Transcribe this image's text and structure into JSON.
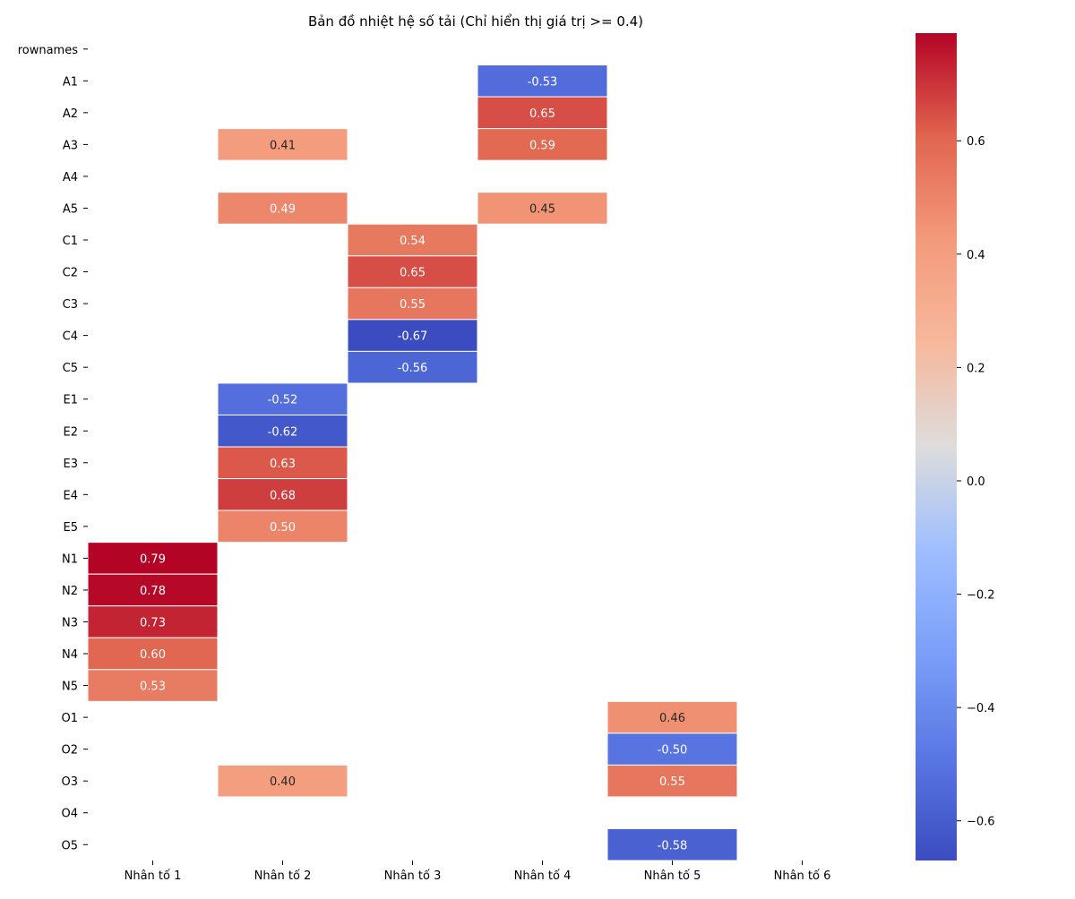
{
  "chart_data": {
    "type": "heatmap",
    "title": "Bản đồ nhiệt hệ số tải (Chỉ hiển thị giá trị >= 0.4)",
    "xlabel": "",
    "ylabel": "",
    "columns": [
      "Nhân tố 1",
      "Nhân tố 2",
      "Nhân tố 3",
      "Nhân tố 4",
      "Nhân tố 5",
      "Nhân tố 6"
    ],
    "rows": [
      "rownames",
      "A1",
      "A2",
      "A3",
      "A4",
      "A5",
      "C1",
      "C2",
      "C3",
      "C4",
      "C5",
      "E1",
      "E2",
      "E3",
      "E4",
      "E5",
      "N1",
      "N2",
      "N3",
      "N4",
      "N5",
      "O1",
      "O2",
      "O3",
      "O4",
      "O5"
    ],
    "values": [
      [
        null,
        null,
        null,
        null,
        null,
        null
      ],
      [
        null,
        null,
        null,
        -0.53,
        null,
        null
      ],
      [
        null,
        null,
        null,
        0.65,
        null,
        null
      ],
      [
        null,
        0.41,
        null,
        0.59,
        null,
        null
      ],
      [
        null,
        null,
        null,
        null,
        null,
        null
      ],
      [
        null,
        0.49,
        null,
        0.45,
        null,
        null
      ],
      [
        null,
        null,
        0.54,
        null,
        null,
        null
      ],
      [
        null,
        null,
        0.65,
        null,
        null,
        null
      ],
      [
        null,
        null,
        0.55,
        null,
        null,
        null
      ],
      [
        null,
        null,
        -0.67,
        null,
        null,
        null
      ],
      [
        null,
        null,
        -0.56,
        null,
        null,
        null
      ],
      [
        null,
        -0.52,
        null,
        null,
        null,
        null
      ],
      [
        null,
        -0.62,
        null,
        null,
        null,
        null
      ],
      [
        null,
        0.63,
        null,
        null,
        null,
        null
      ],
      [
        null,
        0.68,
        null,
        null,
        null,
        null
      ],
      [
        null,
        0.5,
        null,
        null,
        null,
        null
      ],
      [
        0.79,
        null,
        null,
        null,
        null,
        null
      ],
      [
        0.78,
        null,
        null,
        null,
        null,
        null
      ],
      [
        0.73,
        null,
        null,
        null,
        null,
        null
      ],
      [
        0.6,
        null,
        null,
        null,
        null,
        null
      ],
      [
        0.53,
        null,
        null,
        null,
        null,
        null
      ],
      [
        null,
        null,
        null,
        null,
        0.46,
        null
      ],
      [
        null,
        null,
        null,
        null,
        -0.5,
        null
      ],
      [
        null,
        0.4,
        null,
        null,
        0.55,
        null
      ],
      [
        null,
        null,
        null,
        null,
        null,
        null
      ],
      [
        null,
        null,
        null,
        null,
        -0.58,
        null
      ]
    ],
    "colorbar": {
      "colormap": "coolwarm",
      "vmin": -0.67,
      "vmax": 0.79,
      "ticks": [
        0.6,
        0.4,
        0.2,
        0.0,
        -0.2,
        -0.4,
        -0.6
      ],
      "tick_labels": [
        "0.6",
        "0.4",
        "0.2",
        "0.0",
        "−0.2",
        "−0.4",
        "−0.6"
      ]
    }
  }
}
